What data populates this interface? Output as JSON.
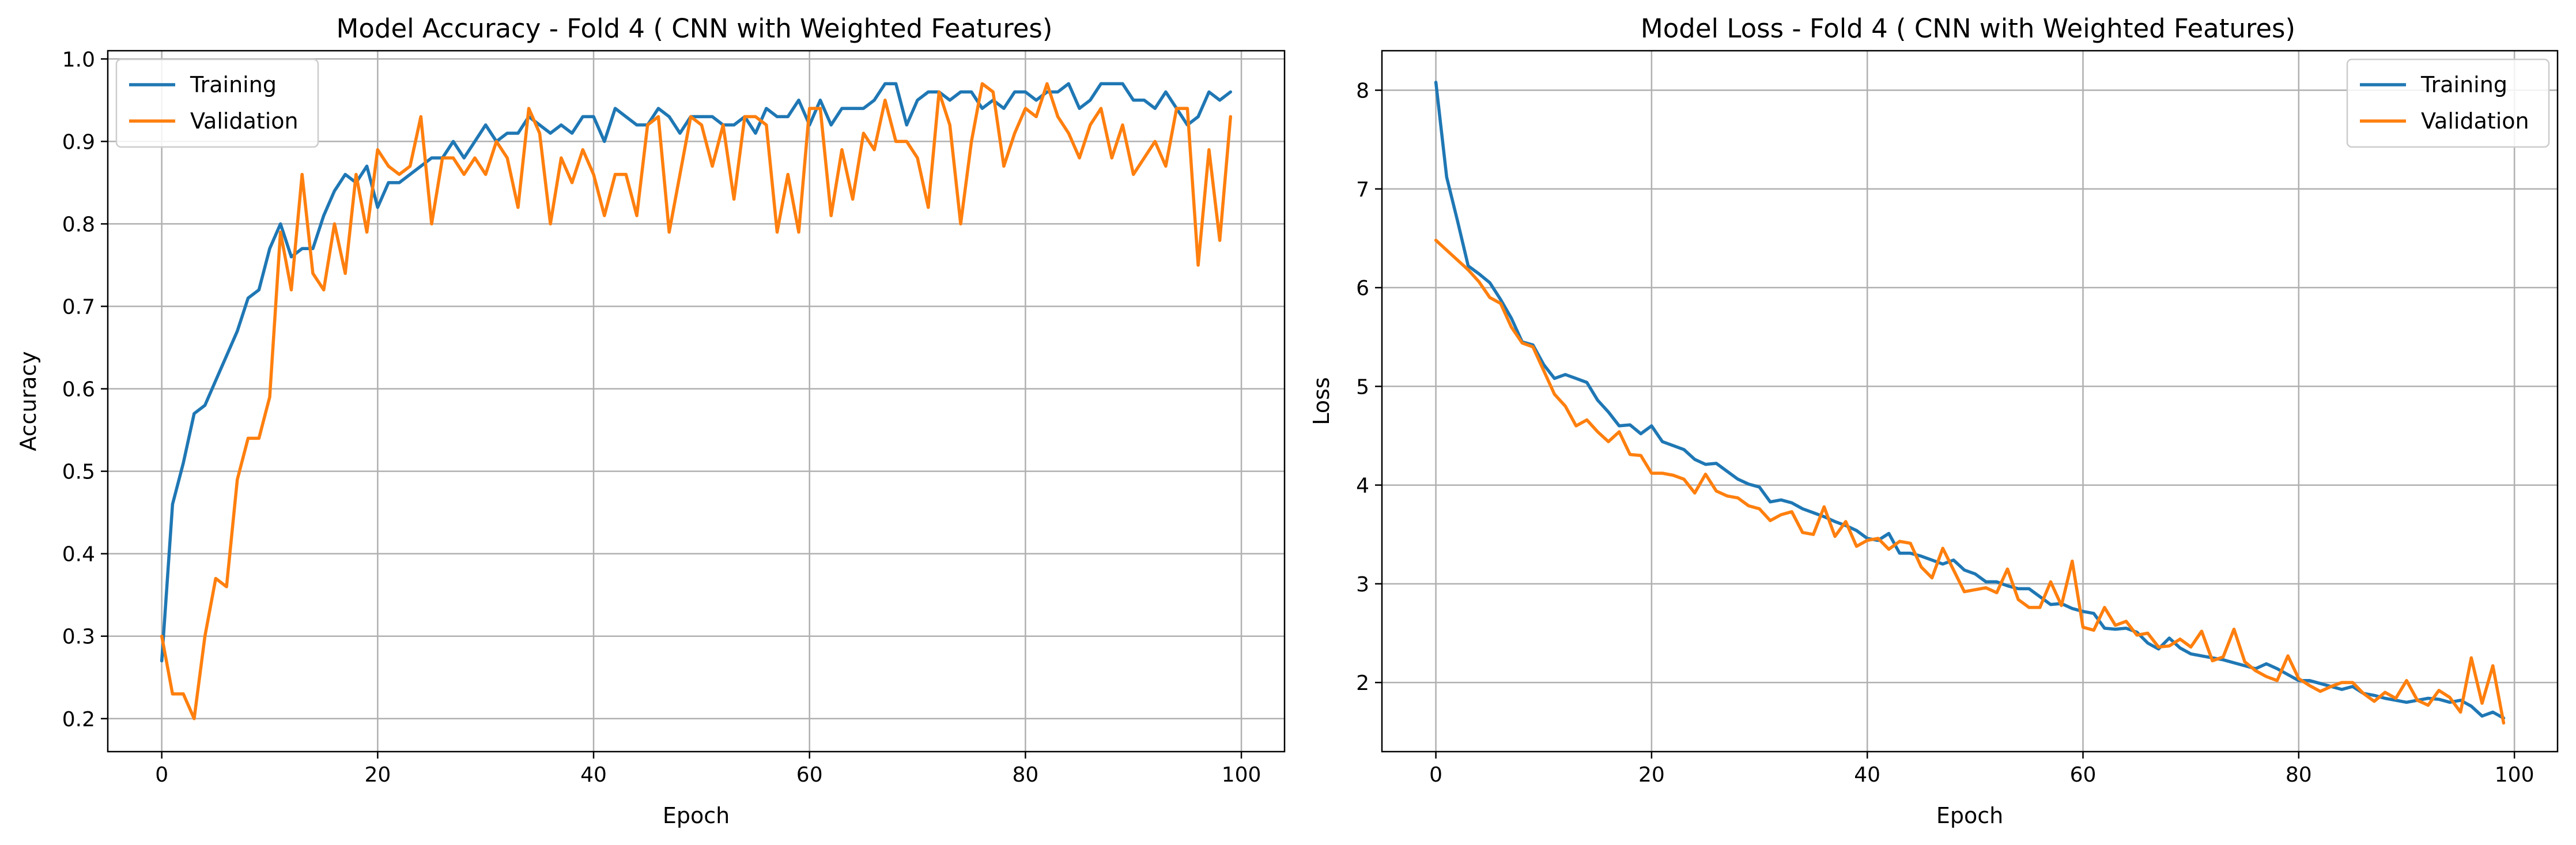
{
  "colors": {
    "training": "#1f77b4",
    "validation": "#ff7f0e",
    "grid": "#b0b0b0",
    "frame": "#000000",
    "background": "#ffffff"
  },
  "chart_data": [
    {
      "type": "line",
      "title": "Model Accuracy - Fold 4 ( CNN with Weighted Features)",
      "xlabel": "Epoch",
      "ylabel": "Accuracy",
      "xlim": [
        -5,
        104
      ],
      "ylim": [
        0.16,
        1.01
      ],
      "xticks": [
        0,
        20,
        40,
        60,
        80,
        100
      ],
      "yticks": [
        0.2,
        0.3,
        0.4,
        0.5,
        0.6,
        0.7,
        0.8,
        0.9,
        1.0
      ],
      "xtick_labels": [
        "0",
        "20",
        "40",
        "60",
        "80",
        "100"
      ],
      "ytick_labels": [
        "0.2",
        "0.3",
        "0.4",
        "0.5",
        "0.6",
        "0.7",
        "0.8",
        "0.9",
        "1.0"
      ],
      "grid": true,
      "legend_position": "top-left",
      "x_start": 0,
      "series": [
        {
          "name": "Training",
          "color": "#1f77b4",
          "values": [
            0.27,
            0.46,
            0.51,
            0.57,
            0.58,
            0.61,
            0.64,
            0.67,
            0.71,
            0.72,
            0.77,
            0.8,
            0.76,
            0.77,
            0.77,
            0.81,
            0.84,
            0.86,
            0.85,
            0.87,
            0.82,
            0.85,
            0.85,
            0.86,
            0.87,
            0.88,
            0.88,
            0.9,
            0.88,
            0.9,
            0.92,
            0.9,
            0.91,
            0.91,
            0.93,
            0.92,
            0.91,
            0.92,
            0.91,
            0.93,
            0.93,
            0.9,
            0.94,
            0.93,
            0.92,
            0.92,
            0.94,
            0.93,
            0.91,
            0.93,
            0.93,
            0.93,
            0.92,
            0.92,
            0.93,
            0.91,
            0.94,
            0.93,
            0.93,
            0.95,
            0.92,
            0.95,
            0.92,
            0.94,
            0.94,
            0.94,
            0.95,
            0.97,
            0.97,
            0.92,
            0.95,
            0.96,
            0.96,
            0.95,
            0.96,
            0.96,
            0.94,
            0.95,
            0.94,
            0.96,
            0.96,
            0.95,
            0.96,
            0.96,
            0.97,
            0.94,
            0.95,
            0.97,
            0.97,
            0.97,
            0.95,
            0.95,
            0.94,
            0.96,
            0.94,
            0.92,
            0.93,
            0.96,
            0.95,
            0.96
          ]
        },
        {
          "name": "Validation",
          "color": "#ff7f0e",
          "values": [
            0.3,
            0.23,
            0.23,
            0.2,
            0.3,
            0.37,
            0.36,
            0.49,
            0.54,
            0.54,
            0.59,
            0.79,
            0.72,
            0.86,
            0.74,
            0.72,
            0.8,
            0.74,
            0.86,
            0.79,
            0.89,
            0.87,
            0.86,
            0.87,
            0.93,
            0.8,
            0.88,
            0.88,
            0.86,
            0.88,
            0.86,
            0.9,
            0.88,
            0.82,
            0.94,
            0.91,
            0.8,
            0.88,
            0.85,
            0.89,
            0.86,
            0.81,
            0.86,
            0.86,
            0.81,
            0.92,
            0.93,
            0.79,
            0.86,
            0.93,
            0.92,
            0.87,
            0.92,
            0.83,
            0.93,
            0.93,
            0.92,
            0.79,
            0.86,
            0.79,
            0.94,
            0.94,
            0.81,
            0.89,
            0.83,
            0.91,
            0.89,
            0.95,
            0.9,
            0.9,
            0.88,
            0.82,
            0.96,
            0.92,
            0.8,
            0.9,
            0.97,
            0.96,
            0.87,
            0.91,
            0.94,
            0.93,
            0.97,
            0.93,
            0.91,
            0.88,
            0.92,
            0.94,
            0.88,
            0.92,
            0.86,
            0.88,
            0.9,
            0.87,
            0.94,
            0.94,
            0.75,
            0.89,
            0.78,
            0.93
          ]
        }
      ]
    },
    {
      "type": "line",
      "title": "Model Loss - Fold 4 ( CNN with Weighted Features)",
      "xlabel": "Epoch",
      "ylabel": "Loss",
      "xlim": [
        -5,
        104
      ],
      "ylim": [
        1.3,
        8.4
      ],
      "xticks": [
        0,
        20,
        40,
        60,
        80,
        100
      ],
      "yticks": [
        2,
        3,
        4,
        5,
        6,
        7,
        8
      ],
      "xtick_labels": [
        "0",
        "20",
        "40",
        "60",
        "80",
        "100"
      ],
      "ytick_labels": [
        "2",
        "3",
        "4",
        "5",
        "6",
        "7",
        "8"
      ],
      "grid": true,
      "legend_position": "top-right",
      "x_start": 0,
      "series": [
        {
          "name": "Training",
          "color": "#1f77b4",
          "values": [
            8.08,
            7.12,
            6.68,
            6.22,
            6.14,
            6.05,
            5.88,
            5.69,
            5.45,
            5.42,
            5.22,
            5.08,
            5.12,
            5.08,
            5.04,
            4.86,
            4.74,
            4.6,
            4.61,
            4.52,
            4.6,
            4.44,
            4.4,
            4.36,
            4.26,
            4.21,
            4.22,
            4.14,
            4.06,
            4.01,
            3.98,
            3.83,
            3.85,
            3.82,
            3.76,
            3.72,
            3.68,
            3.63,
            3.59,
            3.54,
            3.46,
            3.44,
            3.51,
            3.31,
            3.31,
            3.28,
            3.24,
            3.2,
            3.24,
            3.14,
            3.1,
            3.02,
            3.02,
            2.98,
            2.95,
            2.95,
            2.87,
            2.79,
            2.8,
            2.75,
            2.72,
            2.7,
            2.55,
            2.54,
            2.55,
            2.51,
            2.4,
            2.34,
            2.45,
            2.35,
            2.29,
            2.27,
            2.25,
            2.23,
            2.2,
            2.17,
            2.14,
            2.19,
            2.14,
            2.08,
            2.02,
            2.02,
            1.99,
            1.96,
            1.93,
            1.96,
            1.89,
            1.87,
            1.84,
            1.82,
            1.8,
            1.82,
            1.84,
            1.83,
            1.8,
            1.82,
            1.76,
            1.66,
            1.7,
            1.64
          ]
        },
        {
          "name": "Validation",
          "color": "#ff7f0e",
          "values": [
            6.48,
            6.38,
            6.28,
            6.18,
            6.06,
            5.9,
            5.84,
            5.6,
            5.44,
            5.4,
            5.16,
            4.92,
            4.8,
            4.6,
            4.66,
            4.54,
            4.44,
            4.54,
            4.31,
            4.3,
            4.12,
            4.12,
            4.1,
            4.06,
            3.92,
            4.11,
            3.94,
            3.89,
            3.87,
            3.79,
            3.76,
            3.64,
            3.7,
            3.73,
            3.52,
            3.5,
            3.78,
            3.48,
            3.63,
            3.38,
            3.44,
            3.46,
            3.35,
            3.43,
            3.41,
            3.17,
            3.06,
            3.36,
            3.14,
            2.92,
            2.94,
            2.96,
            2.91,
            3.15,
            2.84,
            2.76,
            2.76,
            3.02,
            2.78,
            3.23,
            2.56,
            2.53,
            2.76,
            2.58,
            2.62,
            2.48,
            2.5,
            2.36,
            2.37,
            2.44,
            2.36,
            2.52,
            2.22,
            2.26,
            2.54,
            2.21,
            2.12,
            2.06,
            2.02,
            2.27,
            2.04,
            1.97,
            1.91,
            1.96,
            2.0,
            2.0,
            1.89,
            1.81,
            1.9,
            1.84,
            2.02,
            1.82,
            1.77,
            1.92,
            1.85,
            1.7,
            2.25,
            1.79,
            2.17,
            1.59
          ]
        }
      ]
    }
  ]
}
